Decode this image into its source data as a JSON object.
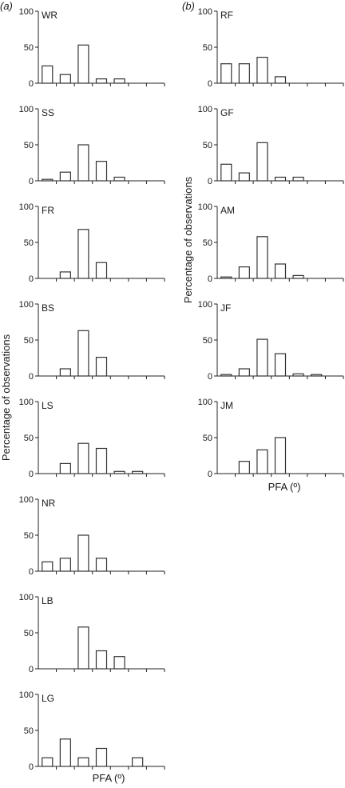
{
  "figure": {
    "left_label": "(a)",
    "right_label": "(b)",
    "ylabel_left": "Percentage of observations",
    "ylabel_right": "Percentage of observations",
    "xlabel_left": "PFA (º)",
    "xlabel_right": "PFA (º)"
  },
  "chart_data": [
    {
      "type": "bar",
      "title": "WR",
      "ylim": [
        0,
        100
      ],
      "yticks": [
        0,
        50,
        100
      ],
      "values": [
        24,
        12,
        53,
        6,
        6,
        0
      ],
      "bar_color": "#333333"
    },
    {
      "type": "bar",
      "title": "SS",
      "ylim": [
        0,
        100
      ],
      "yticks": [
        0,
        50,
        100
      ],
      "values": [
        2,
        12,
        50,
        27,
        5,
        0
      ],
      "bar_color": "#333333"
    },
    {
      "type": "bar",
      "title": "FR",
      "ylim": [
        0,
        100
      ],
      "yticks": [
        0,
        50,
        100
      ],
      "values": [
        0,
        9,
        68,
        22,
        0,
        0
      ],
      "bar_color": "#333333"
    },
    {
      "type": "bar",
      "title": "BS",
      "ylim": [
        0,
        100
      ],
      "yticks": [
        0,
        50,
        100
      ],
      "values": [
        0,
        10,
        63,
        26,
        0,
        0
      ],
      "bar_color": "#333333"
    },
    {
      "type": "bar",
      "title": "LS",
      "ylim": [
        0,
        100
      ],
      "yticks": [
        0,
        50,
        100
      ],
      "values": [
        0,
        14,
        42,
        35,
        3,
        3
      ],
      "bar_color": "#333333"
    },
    {
      "type": "bar",
      "title": "NR",
      "ylim": [
        0,
        100
      ],
      "yticks": [
        0,
        50,
        100
      ],
      "values": [
        13,
        18,
        50,
        18,
        0,
        0
      ],
      "bar_color": "#333333"
    },
    {
      "type": "bar",
      "title": "LB",
      "ylim": [
        0,
        100
      ],
      "yticks": [
        0,
        50,
        100
      ],
      "values": [
        0,
        0,
        58,
        25,
        17,
        0
      ],
      "bar_color": "#333333"
    },
    {
      "type": "bar",
      "title": "LG",
      "ylim": [
        0,
        100
      ],
      "yticks": [
        0,
        50,
        100
      ],
      "values": [
        12,
        38,
        12,
        25,
        0,
        12
      ],
      "bar_color": "#333333"
    },
    {
      "type": "bar",
      "title": "RF",
      "ylim": [
        0,
        100
      ],
      "yticks": [
        0,
        50,
        100
      ],
      "values": [
        27,
        27,
        36,
        9,
        0,
        0
      ],
      "bar_color": "#333333"
    },
    {
      "type": "bar",
      "title": "GF",
      "ylim": [
        0,
        100
      ],
      "yticks": [
        0,
        50,
        100
      ],
      "values": [
        23,
        11,
        53,
        5,
        5,
        0
      ],
      "bar_color": "#333333"
    },
    {
      "type": "bar",
      "title": "AM",
      "ylim": [
        0,
        100
      ],
      "yticks": [
        0,
        50,
        100
      ],
      "values": [
        2,
        16,
        58,
        20,
        4,
        0
      ],
      "bar_color": "#333333"
    },
    {
      "type": "bar",
      "title": "JF",
      "ylim": [
        0,
        100
      ],
      "yticks": [
        0,
        50,
        100
      ],
      "values": [
        2,
        10,
        51,
        31,
        3,
        2
      ],
      "bar_color": "#333333"
    },
    {
      "type": "bar",
      "title": "JM",
      "ylim": [
        0,
        100
      ],
      "yticks": [
        0,
        50,
        100
      ],
      "values": [
        0,
        17,
        33,
        50,
        0,
        0
      ],
      "bar_color": "#333333"
    }
  ]
}
